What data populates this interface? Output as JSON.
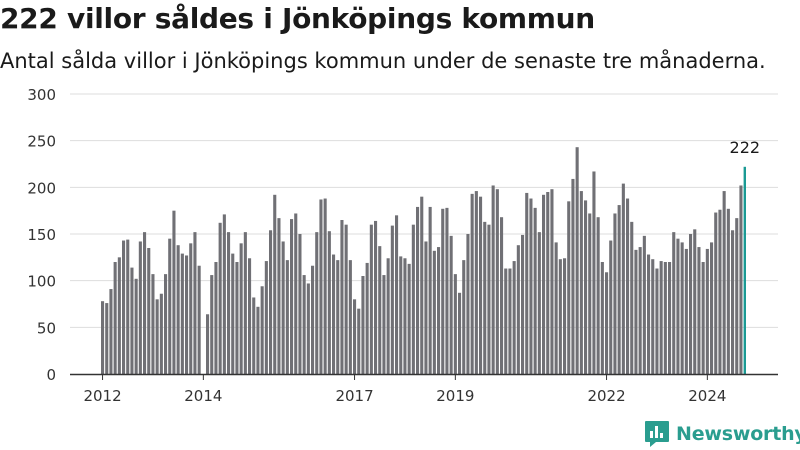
{
  "title": "222 villor såldes i Jönköpings kommun",
  "subtitle": "Antal sålda villor i Jönköpings kommun under de senaste tre månaderna.",
  "brand": {
    "name": "Newsworthy",
    "icon": "newsworthy-logo-icon",
    "color": "#2a9d8f"
  },
  "colors": {
    "bar": "#707075",
    "highlight": "#1a9a94",
    "grid": "#dddddd",
    "axis": "#333333"
  },
  "chart_data": {
    "type": "bar",
    "title": "222 villor såldes i Jönköpings kommun",
    "subtitle": "Antal sålda villor i Jönköpings kommun under de senaste tre månaderna.",
    "xlabel": "",
    "ylabel": "",
    "ylim": [
      0,
      300
    ],
    "yticks": [
      0,
      50,
      100,
      150,
      200,
      250,
      300
    ],
    "grid": true,
    "x_tick_labels": [
      {
        "label": "2012",
        "index": 0
      },
      {
        "label": "2014",
        "index": 24
      },
      {
        "label": "2017",
        "index": 60
      },
      {
        "label": "2019",
        "index": 84
      },
      {
        "label": "2022",
        "index": 120
      },
      {
        "label": "2024",
        "index": 144
      }
    ],
    "highlight_index": 153,
    "highlight_label": "222",
    "values": [
      78,
      76,
      91,
      120,
      125,
      143,
      144,
      114,
      102,
      142,
      152,
      135,
      107,
      80,
      86,
      107,
      145,
      175,
      138,
      129,
      127,
      140,
      152,
      116,
      0,
      64,
      106,
      120,
      162,
      171,
      152,
      129,
      120,
      140,
      152,
      124,
      82,
      72,
      94,
      121,
      154,
      192,
      167,
      142,
      122,
      166,
      172,
      150,
      106,
      97,
      116,
      152,
      187,
      188,
      153,
      128,
      122,
      165,
      160,
      122,
      80,
      70,
      105,
      119,
      160,
      164,
      137,
      106,
      124,
      159,
      170,
      126,
      124,
      118,
      160,
      179,
      190,
      142,
      179,
      132,
      136,
      177,
      178,
      148,
      107,
      87,
      122,
      150,
      193,
      196,
      190,
      163,
      160,
      202,
      198,
      168,
      113,
      113,
      121,
      138,
      149,
      194,
      188,
      178,
      152,
      192,
      195,
      198,
      141,
      123,
      124,
      185,
      209,
      243,
      196,
      186,
      172,
      217,
      168,
      120,
      109,
      143,
      172,
      181,
      204,
      188,
      163,
      133,
      136,
      148,
      128,
      123,
      113,
      121,
      120,
      120,
      152,
      145,
      141,
      134,
      150,
      155,
      136,
      120,
      134,
      141,
      173,
      176,
      196,
      177,
      154,
      167,
      202,
      222
    ]
  }
}
